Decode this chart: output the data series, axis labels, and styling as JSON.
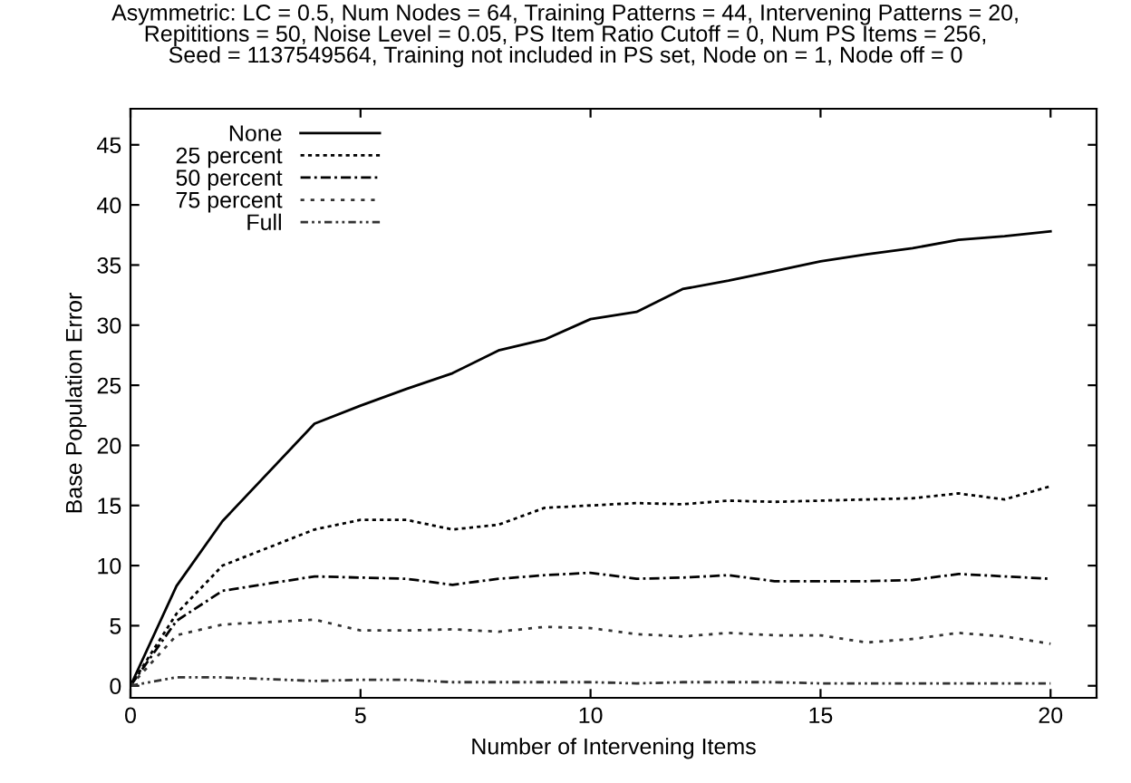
{
  "chart_data": {
    "type": "line",
    "title": "Asymmetric: LC = 0.5, Num Nodes = 64, Training Patterns = 44, Intervening Patterns = 20,\nRepititions = 50, Noise Level = 0.05, PS Item Ratio Cutoff = 0, Num PS Items = 256,\nSeed = 1137549564, Training not included in PS set, Node on = 1, Node off = 0",
    "xlabel": "Number of Intervening Items",
    "ylabel": "Base Population Error",
    "x": [
      0,
      1,
      2,
      4,
      5,
      6,
      7,
      8,
      9,
      10,
      11,
      12,
      13,
      14,
      15,
      16,
      17,
      18,
      19,
      20
    ],
    "series": [
      {
        "name": "None",
        "color": "#000000",
        "line_style": "solid",
        "values": [
          0,
          8.3,
          13.7,
          21.8,
          23.3,
          24.7,
          26,
          27.9,
          28.8,
          30.5,
          31.1,
          33,
          33.7,
          34.5,
          35.3,
          35.9,
          36.4,
          37.1,
          37.4,
          37.8
        ]
      },
      {
        "name": "25 percent",
        "color": "#000000",
        "line_style": "dotted",
        "values": [
          0,
          6,
          10,
          13,
          13.8,
          13.8,
          13,
          13.4,
          14.8,
          15,
          15.2,
          15.1,
          15.4,
          15.3,
          15.4,
          15.5,
          15.6,
          16,
          15.5,
          16.6
        ]
      },
      {
        "name": "50 percent",
        "color": "#000000",
        "line_style": "dashdot",
        "values": [
          0,
          5.4,
          7.9,
          9.1,
          9,
          8.9,
          8.4,
          8.9,
          9.2,
          9.4,
          8.9,
          9,
          9.2,
          8.7,
          8.7,
          8.7,
          8.8,
          9.3,
          9.1,
          8.9
        ]
      },
      {
        "name": "75 percent",
        "color": "#333333",
        "line_style": "loosedot",
        "values": [
          0,
          4.2,
          5.1,
          5.5,
          4.6,
          4.6,
          4.7,
          4.5,
          4.9,
          4.8,
          4.3,
          4.1,
          4.4,
          4.2,
          4.2,
          3.6,
          3.9,
          4.4,
          4.1,
          3.5
        ]
      },
      {
        "name": "Full",
        "color": "#333333",
        "line_style": "dashdotdot",
        "values": [
          0,
          0.7,
          0.7,
          0.4,
          0.5,
          0.5,
          0.3,
          0.3,
          0.3,
          0.3,
          0.2,
          0.3,
          0.3,
          0.3,
          0.2,
          0.2,
          0.2,
          0.2,
          0.2,
          0.2
        ]
      }
    ],
    "xlim": [
      0,
      21
    ],
    "xticks": [
      0,
      5,
      10,
      15,
      20
    ],
    "ylim": [
      -1,
      48
    ],
    "yticks": [
      0,
      5,
      10,
      15,
      20,
      25,
      30,
      35,
      40,
      45
    ],
    "grid": false,
    "legend": "top left",
    "marker": "none"
  }
}
